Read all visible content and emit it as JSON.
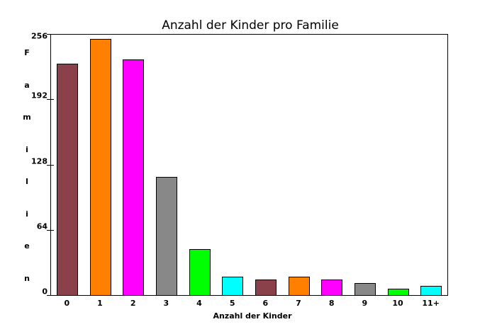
{
  "chart_data": {
    "type": "bar",
    "title": "Anzahl der Kinder pro Familie",
    "xlabel": "Anzahl der Kinder",
    "ylabel": "Familien",
    "categories": [
      "0",
      "1",
      "2",
      "3",
      "4",
      "5",
      "6",
      "7",
      "8",
      "9",
      "10",
      "11+"
    ],
    "values": [
      227,
      251,
      231,
      116,
      45,
      18,
      15,
      18,
      15,
      12,
      6,
      9
    ],
    "colors": [
      "#8b4149",
      "#ff8000",
      "#ff00ff",
      "#888888",
      "#00ff00",
      "#00ffff",
      "#8b4149",
      "#ff8000",
      "#ff00ff",
      "#888888",
      "#00ff00",
      "#00ffff"
    ],
    "ylim": [
      0,
      256
    ],
    "yticks": [
      "0",
      "64",
      "128",
      "192",
      "256"
    ],
    "grid": false,
    "legend": "none"
  }
}
